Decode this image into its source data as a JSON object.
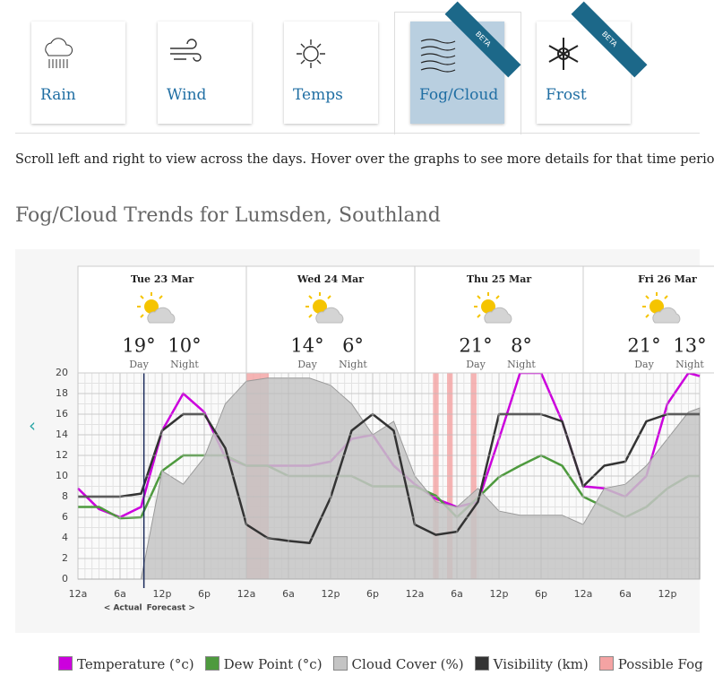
{
  "tabs": [
    {
      "label": "Rain"
    },
    {
      "label": "Wind"
    },
    {
      "label": "Temps"
    },
    {
      "label": "Fog/Cloud",
      "badge": "BETA",
      "active": true
    },
    {
      "label": "Frost",
      "badge": "BETA"
    }
  ],
  "intro": "Scroll left and right to view across the days. Hover over the graphs to see more details for that time perio",
  "heading": "Fog/Cloud Trends for Lumsden, Southland",
  "chart_data": {
    "type": "line",
    "days": [
      {
        "label": "Tue 23 Mar",
        "day": "19°",
        "day_label": "Day",
        "night": "10°",
        "night_label": "Night"
      },
      {
        "label": "Wed 24 Mar",
        "day": "14°",
        "day_label": "Day",
        "night": "6°",
        "night_label": "Night"
      },
      {
        "label": "Thu 25 Mar",
        "day": "21°",
        "day_label": "Day",
        "night": "8°",
        "night_label": "Night"
      },
      {
        "label": "Fri 26 Mar",
        "day": "21°",
        "day_label": "Day",
        "night": "13°",
        "night_label": "Night"
      }
    ],
    "x": [
      0,
      3,
      6,
      9,
      12,
      15,
      18,
      21,
      24,
      27,
      30,
      33,
      36,
      39,
      42,
      45,
      48,
      51,
      54,
      57,
      60,
      63,
      66,
      69,
      72,
      75,
      78,
      81,
      84,
      87,
      88.6
    ],
    "xlim": [
      0,
      88.6
    ],
    "xticks": [
      {
        "value": 0,
        "label": "12a"
      },
      {
        "value": 6,
        "label": "6a"
      },
      {
        "value": 12,
        "label": "12p"
      },
      {
        "value": 18,
        "label": "6p"
      },
      {
        "value": 24,
        "label": "12a"
      },
      {
        "value": 30,
        "label": "6a"
      },
      {
        "value": 36,
        "label": "12p"
      },
      {
        "value": 42,
        "label": "6p"
      },
      {
        "value": 48,
        "label": "12a"
      },
      {
        "value": 54,
        "label": "6a"
      },
      {
        "value": 60,
        "label": "12p"
      },
      {
        "value": 66,
        "label": "6p"
      },
      {
        "value": 72,
        "label": "12a"
      },
      {
        "value": 78,
        "label": "6a"
      },
      {
        "value": 84,
        "label": "12p"
      }
    ],
    "ylim": [
      0,
      20
    ],
    "yticks": [
      0,
      2,
      4,
      6,
      8,
      10,
      12,
      14,
      16,
      18,
      20
    ],
    "grid": true,
    "series": [
      {
        "name": "Temperature (°c)",
        "color": "#cc00dd",
        "values": [
          8.8,
          6.8,
          6.0,
          7.0,
          14.4,
          18,
          16.2,
          11.8,
          11,
          11,
          11,
          11,
          11.4,
          13.6,
          14,
          11,
          9.2,
          7.8,
          7.0,
          7.5,
          13.6,
          20,
          20,
          15.3,
          9,
          8.8,
          8,
          10,
          17,
          20,
          19.7
        ]
      },
      {
        "name": "Dew Point (°c)",
        "color": "#4e9a3e",
        "values": [
          7,
          7,
          5.9,
          6,
          10.5,
          12,
          12,
          12,
          11,
          11,
          10,
          10,
          10,
          10,
          9,
          9,
          9,
          8.1,
          6,
          7.9,
          9.9,
          11,
          12,
          11,
          8,
          7,
          6,
          7,
          8.8,
          10,
          10
        ]
      },
      {
        "name": "Cloud Cover (%)",
        "color": "#c4c4c4",
        "area": true,
        "values": [
          0,
          0,
          0,
          0,
          10.5,
          9.2,
          11.8,
          17,
          19.2,
          19.5,
          19.5,
          19.5,
          18.8,
          17,
          14,
          15.3,
          10,
          7.5,
          7,
          8.8,
          6.6,
          6.2,
          6.2,
          6.2,
          5.3,
          8.8,
          9.2,
          11,
          13.6,
          16.2,
          16.6
        ]
      },
      {
        "name": "Visibility (km)",
        "color": "#333333",
        "values": [
          8,
          8,
          8,
          8.3,
          14.4,
          16,
          16,
          12.7,
          5.3,
          4,
          3.7,
          3.5,
          7.9,
          14.4,
          16,
          14.4,
          5.3,
          4.3,
          4.6,
          7.5,
          16,
          16,
          16,
          15.3,
          9,
          11,
          11.4,
          15.3,
          16,
          16,
          16
        ]
      }
    ],
    "fog": {
      "name": "Possible Fog",
      "color": "#f4a3a3",
      "ranges": [
        [
          24,
          27.2
        ],
        [
          50.6,
          51.4
        ],
        [
          52.6,
          53.4
        ],
        [
          56,
          56.8
        ]
      ]
    },
    "now": 9.4,
    "annotation_left": "< Actual",
    "annotation_right": "Forecast >"
  }
}
